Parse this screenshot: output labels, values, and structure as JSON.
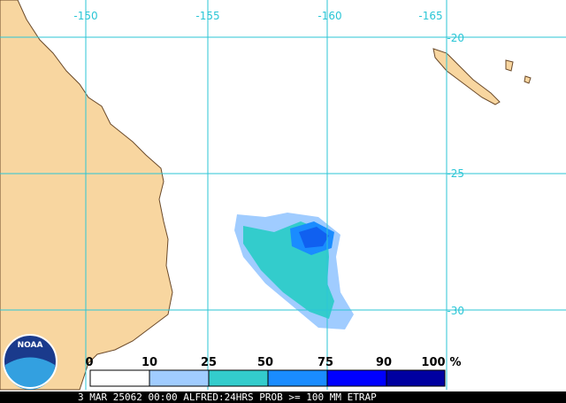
{
  "map": {
    "lon_labels": [
      "-150",
      "-155",
      "-160",
      "-165"
    ],
    "lat_labels": [
      "-20",
      "-25",
      "-30"
    ]
  },
  "legend": {
    "labels": [
      "0",
      "10",
      "25",
      "50",
      "75",
      "90",
      "100",
      "%"
    ]
  },
  "logo": "NOAA",
  "footer": "3 MAR 25062 00:00 ALFRED:24HRS PROB >= 100 MM ETRAP"
}
